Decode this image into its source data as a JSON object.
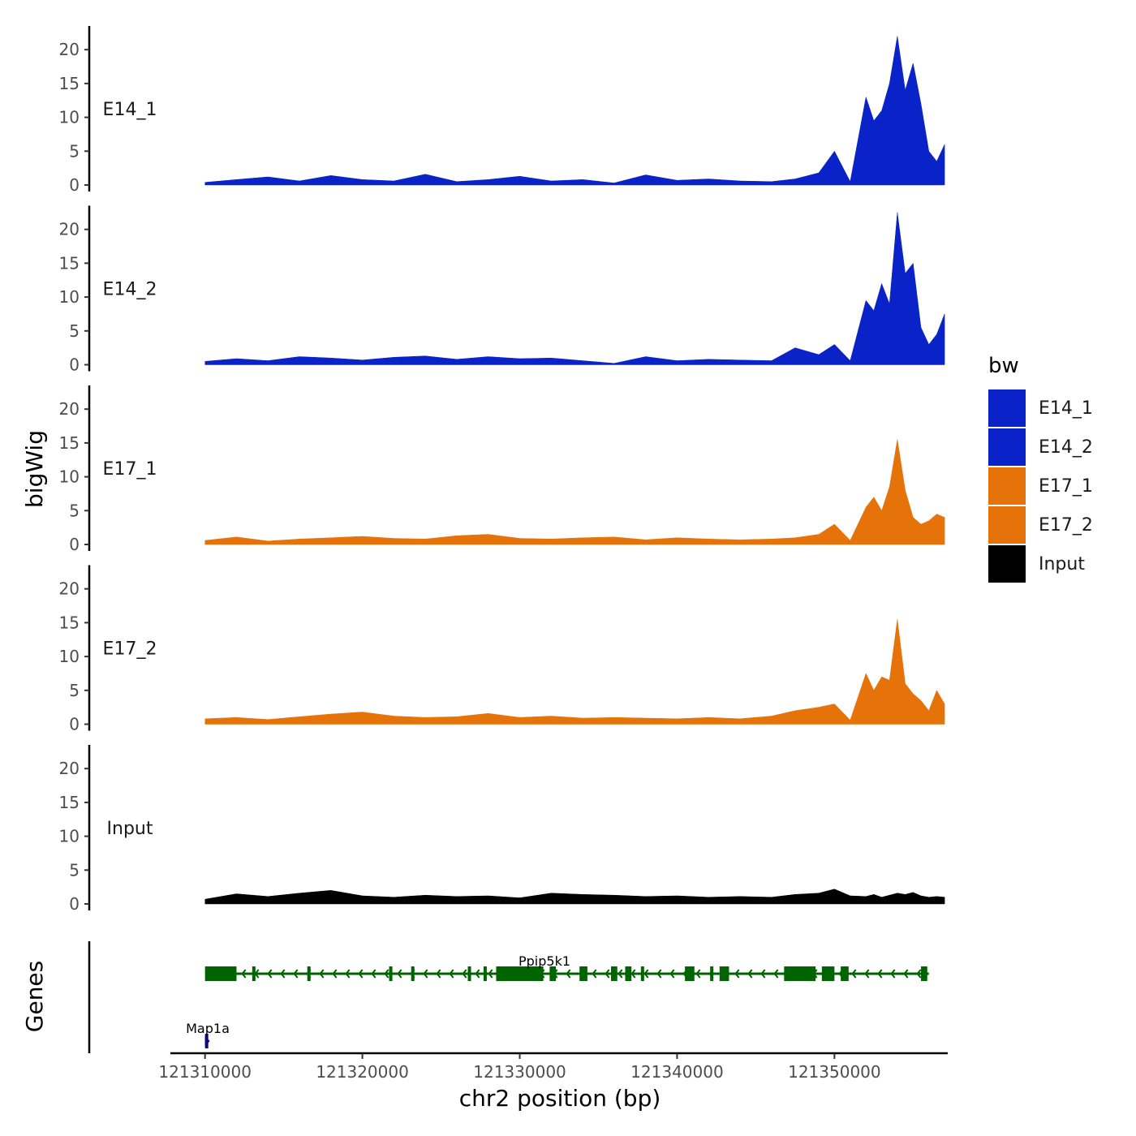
{
  "chart_data": {
    "type": "area",
    "ylabel": "bigWig",
    "xlabel": "chr2 position (bp)",
    "xlim": [
      121307800,
      121357200
    ],
    "ylim": [
      0,
      23.5
    ],
    "y_ticks": [
      0,
      5,
      10,
      15,
      20
    ],
    "y_tick_labels": [
      "0",
      "5",
      "10",
      "15",
      "20"
    ],
    "x_ticks": [
      121310000,
      121320000,
      121330000,
      121340000,
      121350000
    ],
    "x_tick_labels": [
      "121310000",
      "121320000",
      "121330000",
      "121340000",
      "121350000"
    ],
    "genes_track_label": "Genes",
    "legend": {
      "title": "bw",
      "items": [
        {
          "label": "E14_1",
          "color": "#0A23C8"
        },
        {
          "label": "E14_2",
          "color": "#0A23C8"
        },
        {
          "label": "E17_1",
          "color": "#E6730A"
        },
        {
          "label": "E17_2",
          "color": "#E6730A"
        },
        {
          "label": "Input",
          "color": "#000000"
        }
      ]
    },
    "series": [
      {
        "name": "E14_1",
        "color": "#0A23C8",
        "x": [
          121310000,
          121312000,
          121314000,
          121316000,
          121318000,
          121320000,
          121322000,
          121324000,
          121326000,
          121328000,
          121330000,
          121332000,
          121334000,
          121336000,
          121338000,
          121340000,
          121342000,
          121344000,
          121346000,
          121347500,
          121349000,
          121350000,
          121351000,
          121352000,
          121352500,
          121353000,
          121353500,
          121354000,
          121354500,
          121355000,
          121355500,
          121356000,
          121356500,
          121357000
        ],
        "values": [
          0.4,
          0.8,
          1.2,
          0.6,
          1.4,
          0.8,
          0.6,
          1.6,
          0.5,
          0.8,
          1.3,
          0.6,
          0.8,
          0.3,
          1.5,
          0.7,
          0.9,
          0.6,
          0.5,
          0.9,
          1.8,
          5.0,
          0.5,
          13.0,
          9.5,
          11.0,
          15.0,
          22.0,
          14.0,
          18.0,
          12.0,
          5.0,
          3.5,
          6.0
        ]
      },
      {
        "name": "E14_2",
        "color": "#0A23C8",
        "x": [
          121310000,
          121312000,
          121314000,
          121316000,
          121318000,
          121320000,
          121322000,
          121324000,
          121326000,
          121328000,
          121330000,
          121332000,
          121334000,
          121336000,
          121338000,
          121340000,
          121342000,
          121344000,
          121346000,
          121347500,
          121349000,
          121350000,
          121351000,
          121352000,
          121352500,
          121353000,
          121353500,
          121354000,
          121354500,
          121355000,
          121355500,
          121356000,
          121356500,
          121357000
        ],
        "values": [
          0.5,
          0.9,
          0.6,
          1.2,
          1.0,
          0.7,
          1.1,
          1.3,
          0.8,
          1.2,
          0.9,
          1.0,
          0.6,
          0.2,
          1.2,
          0.6,
          0.8,
          0.7,
          0.6,
          2.5,
          1.5,
          3.0,
          0.6,
          9.5,
          8.0,
          12.0,
          9.0,
          22.5,
          13.5,
          15.0,
          5.5,
          3.0,
          4.5,
          7.5
        ]
      },
      {
        "name": "E17_1",
        "color": "#E6730A",
        "x": [
          121310000,
          121312000,
          121314000,
          121316000,
          121318000,
          121320000,
          121322000,
          121324000,
          121326000,
          121328000,
          121330000,
          121332000,
          121334000,
          121336000,
          121338000,
          121340000,
          121342000,
          121344000,
          121346000,
          121347500,
          121349000,
          121350000,
          121351000,
          121352000,
          121352500,
          121353000,
          121353500,
          121354000,
          121354500,
          121355000,
          121355500,
          121356000,
          121356500,
          121357000
        ],
        "values": [
          0.6,
          1.1,
          0.5,
          0.8,
          1.0,
          1.2,
          0.9,
          0.8,
          1.3,
          1.5,
          0.9,
          0.8,
          1.0,
          1.1,
          0.7,
          1.0,
          0.8,
          0.7,
          0.8,
          1.0,
          1.5,
          3.0,
          0.6,
          5.5,
          7.0,
          5.0,
          8.5,
          15.5,
          8.0,
          4.0,
          3.0,
          3.5,
          4.5,
          4.0
        ]
      },
      {
        "name": "E17_2",
        "color": "#E6730A",
        "x": [
          121310000,
          121312000,
          121314000,
          121316000,
          121318000,
          121320000,
          121322000,
          121324000,
          121326000,
          121328000,
          121330000,
          121332000,
          121334000,
          121336000,
          121338000,
          121340000,
          121342000,
          121344000,
          121346000,
          121347500,
          121349000,
          121350000,
          121351000,
          121352000,
          121352500,
          121353000,
          121353500,
          121354000,
          121354500,
          121355000,
          121355500,
          121356000,
          121356500,
          121357000
        ],
        "values": [
          0.8,
          1.0,
          0.7,
          1.1,
          1.5,
          1.8,
          1.2,
          1.0,
          1.1,
          1.6,
          1.0,
          1.2,
          0.9,
          1.0,
          0.9,
          0.8,
          1.0,
          0.8,
          1.2,
          2.0,
          2.5,
          3.0,
          0.6,
          7.5,
          5.0,
          7.0,
          6.5,
          15.5,
          6.0,
          4.5,
          3.5,
          2.0,
          5.0,
          3.0
        ]
      },
      {
        "name": "Input",
        "color": "#000000",
        "x": [
          121310000,
          121312000,
          121314000,
          121316000,
          121318000,
          121320000,
          121322000,
          121324000,
          121326000,
          121328000,
          121330000,
          121332000,
          121334000,
          121336000,
          121338000,
          121340000,
          121342000,
          121344000,
          121346000,
          121347500,
          121349000,
          121350000,
          121351000,
          121352000,
          121352500,
          121353000,
          121353500,
          121354000,
          121354500,
          121355000,
          121355500,
          121356000,
          121356500,
          121357000
        ],
        "values": [
          0.7,
          1.5,
          1.1,
          1.6,
          2.0,
          1.2,
          1.0,
          1.3,
          1.1,
          1.2,
          0.9,
          1.6,
          1.4,
          1.3,
          1.1,
          1.2,
          1.0,
          1.1,
          1.0,
          1.4,
          1.6,
          2.2,
          1.2,
          1.1,
          1.4,
          1.0,
          1.3,
          1.6,
          1.4,
          1.7,
          1.2,
          1.0,
          1.1,
          1.0
        ]
      }
    ],
    "genes": [
      {
        "name": "Ppip5k1",
        "strand": "-",
        "color": "#006400",
        "start": 121310000,
        "end": 121356000,
        "exons": [
          [
            121310000,
            121312000
          ],
          [
            121313000,
            121313100
          ],
          [
            121316500,
            121316600
          ],
          [
            121321700,
            121321800
          ],
          [
            121323100,
            121323200
          ],
          [
            121326700,
            121326800
          ],
          [
            121327700,
            121327900
          ],
          [
            121328500,
            121331500
          ],
          [
            121331900,
            121332300
          ],
          [
            121333800,
            121334300
          ],
          [
            121335800,
            121336200
          ],
          [
            121336700,
            121337100
          ],
          [
            121337700,
            121337900
          ],
          [
            121340500,
            121341100
          ],
          [
            121342100,
            121342300
          ],
          [
            121342700,
            121343300
          ],
          [
            121346800,
            121348800
          ],
          [
            121349200,
            121350000
          ],
          [
            121350400,
            121350900
          ],
          [
            121355500,
            121355900
          ]
        ]
      },
      {
        "name": "Map1a",
        "strand": "+",
        "color": "#0A0A80",
        "start": 121310000,
        "end": 121310200,
        "exons": [
          [
            121310000,
            121310200
          ]
        ]
      }
    ]
  }
}
